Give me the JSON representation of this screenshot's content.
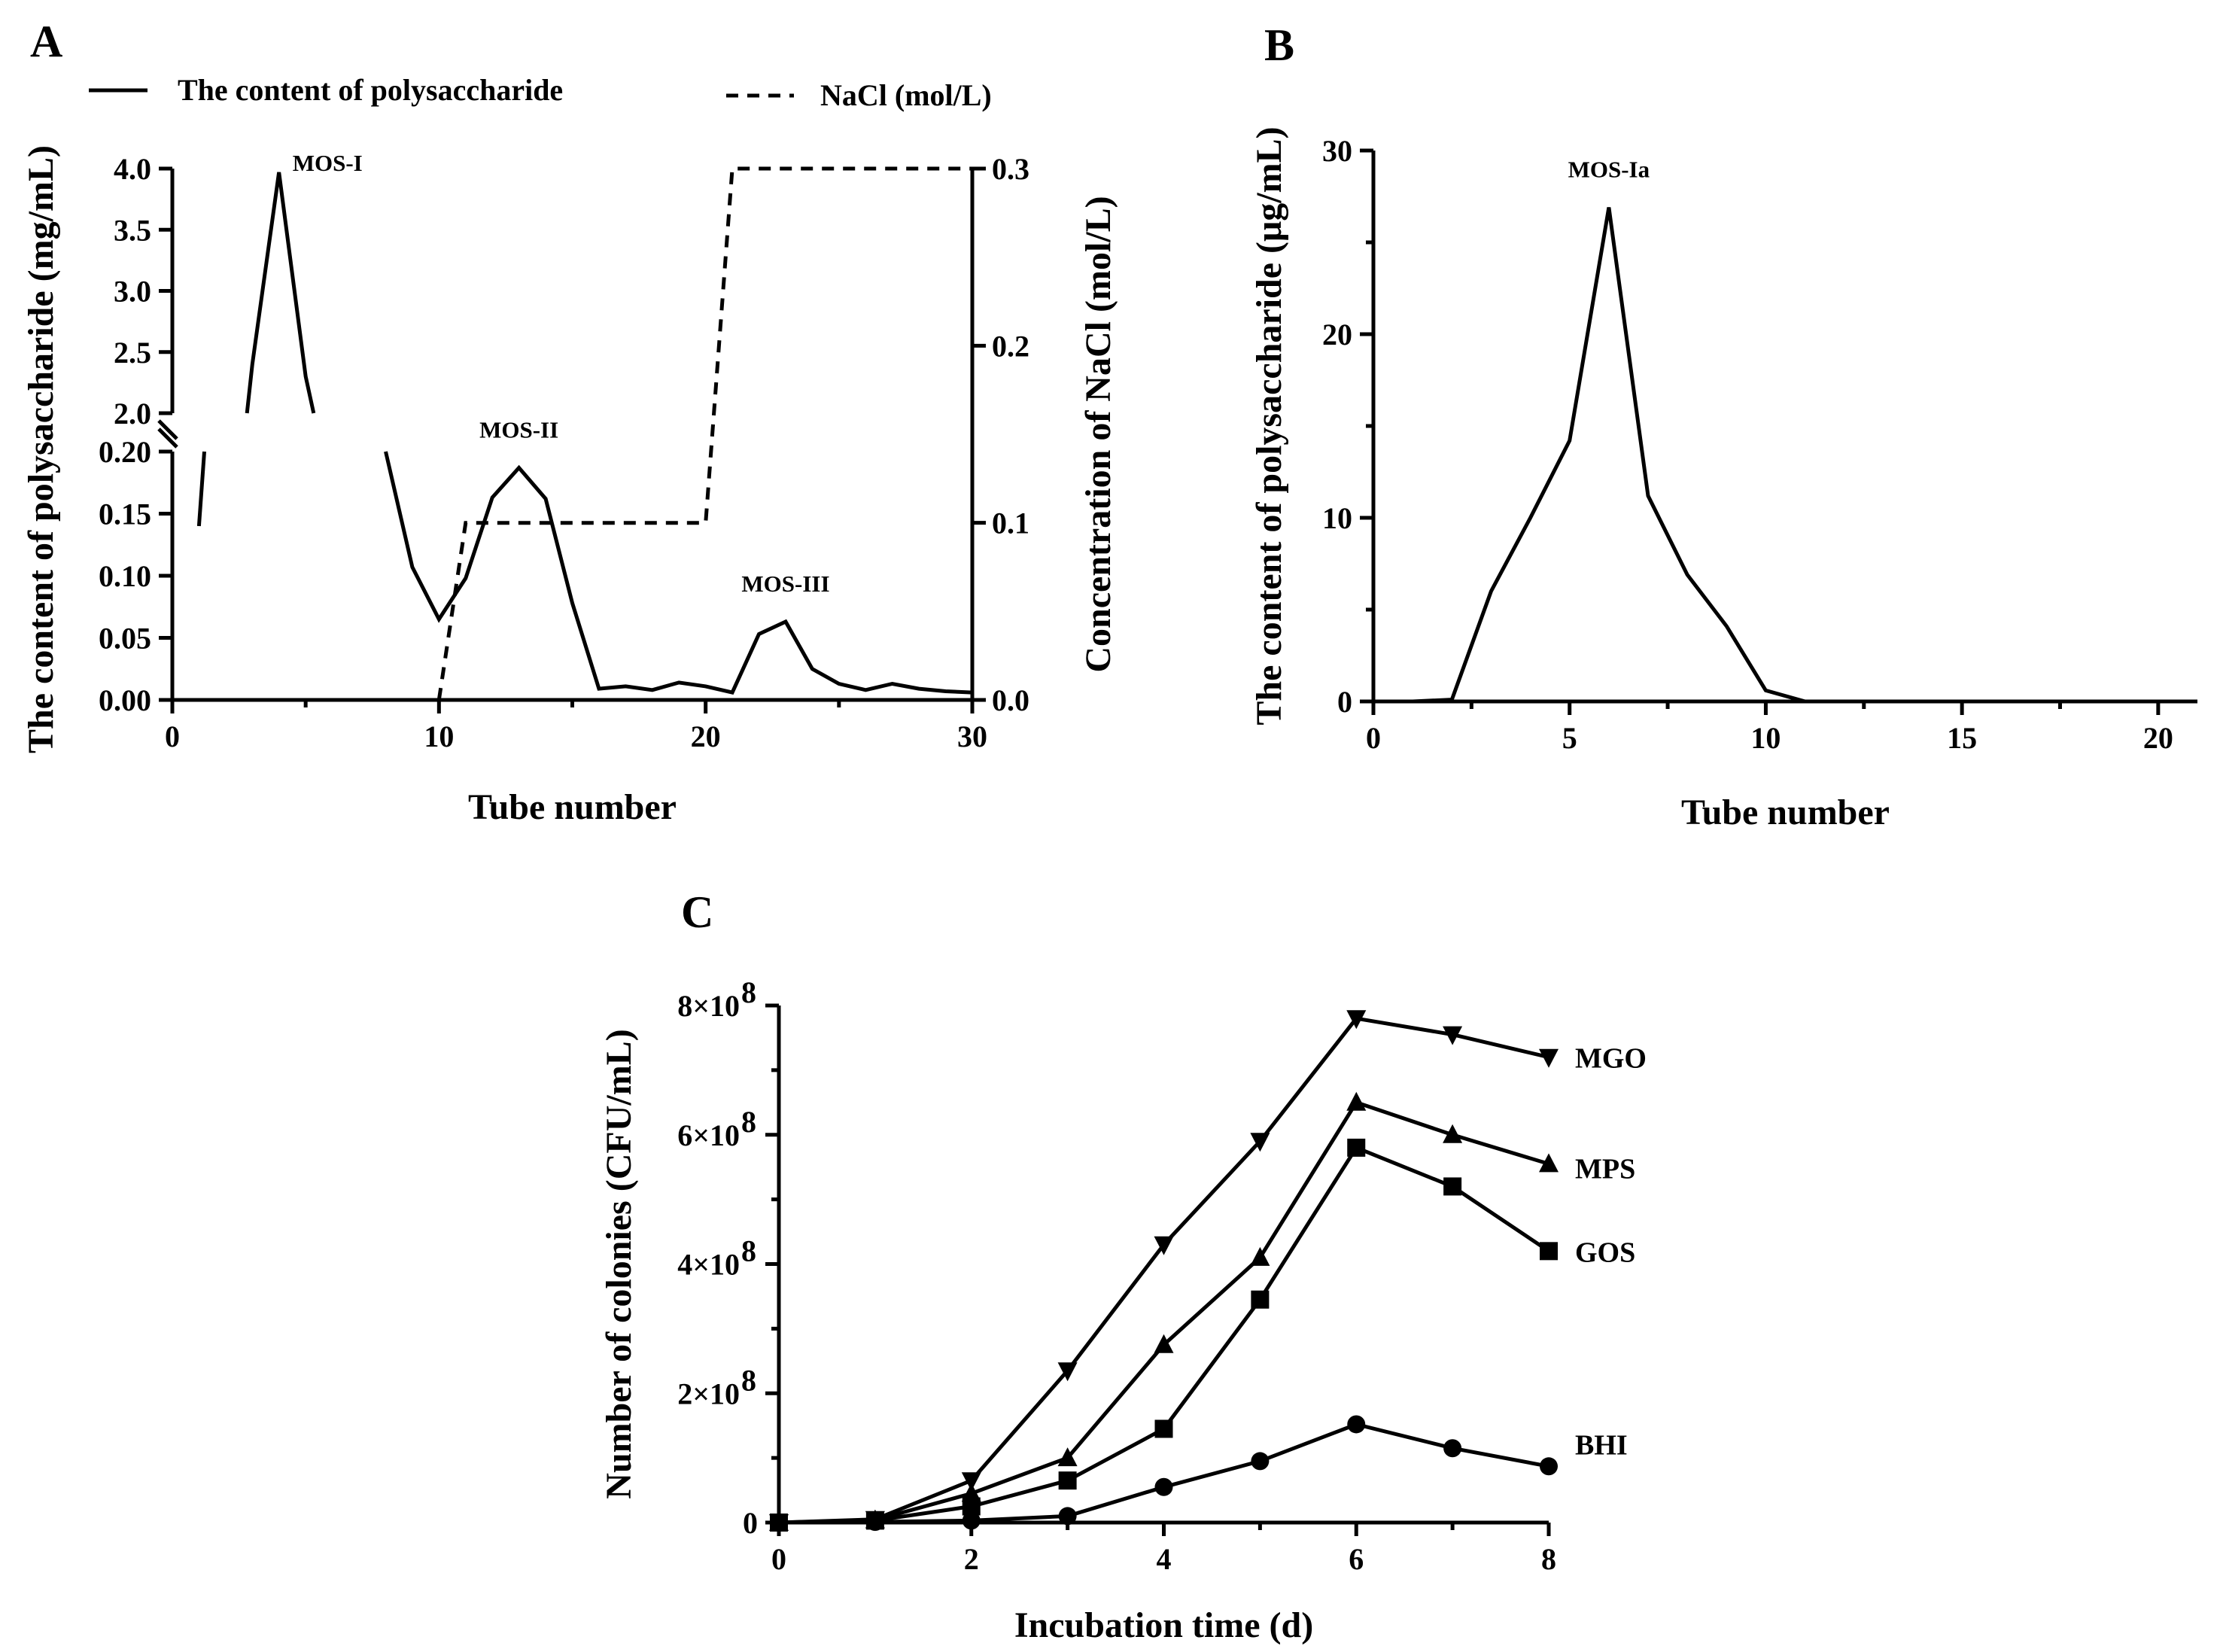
{
  "chart_data": [
    {
      "panel": "A",
      "type": "line",
      "legend": [
        {
          "label": "The content of polysaccharide",
          "style": "solid"
        },
        {
          "label": "NaCl (mol/L)",
          "style": "dashed"
        }
      ],
      "xlabel": "Tube number",
      "ylabel": "The content of polysaccharide (mg/mL)",
      "y2label": "Concentration of NaCl (mol/L)",
      "xlim": [
        0,
        30
      ],
      "xticks": [
        "0",
        "10",
        "20",
        "30"
      ],
      "ylim_lower": [
        0,
        0.2
      ],
      "ylim_upper": [
        2.0,
        4.0
      ],
      "yticks_lower": [
        "0.00",
        "0.05",
        "0.10",
        "0.15",
        "0.20"
      ],
      "yticks_upper": [
        "2.0",
        "2.5",
        "3.0",
        "3.5",
        "4.0"
      ],
      "y2lim": [
        0,
        0.3
      ],
      "y2ticks": [
        "0.0",
        "0.1",
        "0.2",
        "0.3"
      ],
      "series": [
        {
          "name": "The content of polysaccharide",
          "axis": "left",
          "x": [
            1,
            1.2,
            2.8,
            3,
            4,
            5,
            5.3,
            8,
            9,
            10,
            11,
            12,
            13,
            14,
            15,
            16,
            17,
            18,
            19,
            20,
            21,
            22,
            23,
            24,
            25,
            26,
            27,
            28,
            29,
            30
          ],
          "y": [
            0.14,
            0.2,
            2.0,
            2.4,
            3.97,
            2.3,
            2.0,
            0.2,
            0.107,
            0.065,
            0.098,
            0.163,
            0.187,
            0.162,
            0.078,
            0.009,
            0.011,
            0.008,
            0.014,
            0.011,
            0.006,
            0.053,
            0.063,
            0.025,
            0.013,
            0.008,
            0.013,
            0.009,
            0.007,
            0.006
          ],
          "gaps": [
            [
              1.2,
              2.8
            ],
            [
              5.3,
              8
            ]
          ]
        },
        {
          "name": "NaCl (mol/L)",
          "axis": "right",
          "x": [
            10,
            11,
            20,
            21,
            30
          ],
          "y": [
            0,
            0.1,
            0.1,
            0.3,
            0.3
          ]
        }
      ],
      "annotations": [
        {
          "text": "MOS-I",
          "x": 4,
          "y": 3.97
        },
        {
          "text": "MOS-II",
          "x": 13,
          "y": 0.187
        },
        {
          "text": "MOS-III",
          "x": 23,
          "y": 0.063
        }
      ]
    },
    {
      "panel": "B",
      "type": "line",
      "xlabel": "Tube number",
      "ylabel": "The content of polysaccharide (μg/mL)",
      "xlim": [
        0,
        21
      ],
      "xticks": [
        "0",
        "5",
        "10",
        "15",
        "20"
      ],
      "ylim": [
        0,
        30
      ],
      "yticks": [
        "0",
        "10",
        "20",
        "30"
      ],
      "series": [
        {
          "name": "MOS-Ia",
          "x": [
            0,
            1,
            2,
            3,
            4,
            5,
            6,
            7,
            8,
            9,
            10,
            11,
            12,
            13,
            14,
            15,
            16,
            17,
            18,
            19,
            20,
            21
          ],
          "y": [
            0,
            0,
            0.1,
            6,
            10,
            14.2,
            26.9,
            11.2,
            6.9,
            4.1,
            0.6,
            0,
            0,
            0,
            0,
            0,
            0,
            0,
            0,
            0,
            0,
            0
          ]
        }
      ],
      "annotations": [
        {
          "text": "MOS-Ia",
          "x": 6,
          "y": 26.9
        }
      ]
    },
    {
      "panel": "C",
      "type": "line",
      "xlabel": "Incubation time (d)",
      "ylabel": "Number of colonies (CFU/mL)",
      "xlim": [
        0,
        8
      ],
      "xticks": [
        "0",
        "2",
        "4",
        "6",
        "8"
      ],
      "ylim": [
        0,
        800000000
      ],
      "yticks": [
        "0",
        "2×10",
        "4×10",
        "6×10",
        "8×10"
      ],
      "ytick_exponent": "8",
      "x": [
        0,
        1,
        2,
        3,
        4,
        5,
        6,
        7,
        8
      ],
      "series": [
        {
          "name": "MGO",
          "marker": "triangle-down",
          "values": [
            0,
            5000000,
            65000000,
            235000000,
            430000000,
            590000000,
            780000000,
            755000000,
            720000000
          ]
        },
        {
          "name": "MPS",
          "marker": "triangle-up",
          "values": [
            0,
            4000000,
            45000000,
            100000000,
            275000000,
            410000000,
            650000000,
            600000000,
            555000000
          ]
        },
        {
          "name": "GOS",
          "marker": "square",
          "values": [
            0,
            3000000,
            25000000,
            65000000,
            145000000,
            345000000,
            580000000,
            520000000,
            420000000
          ]
        },
        {
          "name": "BHI",
          "marker": "circle",
          "values": [
            0,
            1000000,
            3000000,
            10000000,
            55000000,
            95000000,
            152000000,
            115000000,
            87000000
          ]
        }
      ]
    }
  ]
}
